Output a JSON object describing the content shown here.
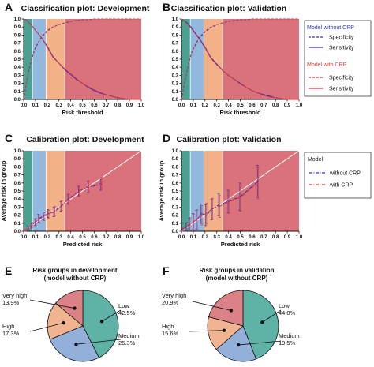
{
  "colors": {
    "very_low": "#4aa191",
    "low_zone": "#93b8dd",
    "medium_zone": "#f2b187",
    "high_zone": "#d9727a",
    "no_crp": "#2e33c4",
    "crp": "#e23a3a",
    "pie_low": "#5fb3a6",
    "pie_medium": "#93b0db",
    "pie_high": "#f1b491",
    "pie_very_high": "#dc8287"
  },
  "zones": [
    0.0,
    0.075,
    0.19,
    0.35,
    1.0
  ],
  "panels": [
    {
      "letter": "A",
      "title": "Classification plot: Development"
    },
    {
      "letter": "B",
      "title": "Classification plot: Validation"
    },
    {
      "letter": "C",
      "title": "Calibration plot: Development"
    },
    {
      "letter": "D",
      "title": "Calibration plot: Validation"
    },
    {
      "letter": "E",
      "title_line1": "Risk groups in development",
      "title_line2": "(model without CRP)"
    },
    {
      "letter": "F",
      "title_line1": "Risk groups in validation",
      "title_line2": "(model without CRP)"
    }
  ],
  "legends": {
    "classification": {
      "group1": "Model without CRP",
      "group1_items": [
        "Specificity",
        "Sensitivity"
      ],
      "group2": "Model with CRP",
      "group2_items": [
        "Specificity",
        "Sensitivity"
      ]
    },
    "calibration": {
      "title": "Model",
      "items": [
        "without CRP",
        "with CRP"
      ]
    }
  },
  "chart_data": [
    {
      "type": "line",
      "panel": "A",
      "title": "Classification plot: Development",
      "xlabel": "Risk threshold",
      "ylabel": "",
      "xlim": [
        0,
        1
      ],
      "ylim": [
        0,
        1
      ],
      "xticks": [
        "0.0",
        "0.1",
        "0.2",
        "0.3",
        "0.4",
        "0.5",
        "0.6",
        "0.7",
        "0.8",
        "0.9",
        "1.0"
      ],
      "yticks": [
        "0.0",
        "0.1",
        "0.2",
        "0.3",
        "0.4",
        "0.5",
        "0.6",
        "0.7",
        "0.8",
        "0.9",
        "1.0"
      ],
      "x": [
        0.0,
        0.02,
        0.04,
        0.06,
        0.08,
        0.1,
        0.15,
        0.2,
        0.25,
        0.3,
        0.35,
        0.4,
        0.45,
        0.5,
        0.55,
        0.6,
        0.65,
        0.7,
        0.75,
        0.8,
        0.9,
        1.0
      ],
      "series": [
        {
          "name": "Specificity",
          "group": "Model without CRP",
          "values": [
            0.0,
            0.18,
            0.33,
            0.46,
            0.56,
            0.64,
            0.77,
            0.85,
            0.9,
            0.93,
            0.95,
            0.97,
            0.98,
            0.99,
            0.99,
            1.0,
            1.0,
            1.0,
            1.0,
            1.0,
            1.0,
            1.0
          ]
        },
        {
          "name": "Sensitivity",
          "group": "Model without CRP",
          "values": [
            1.0,
            0.99,
            0.96,
            0.93,
            0.9,
            0.86,
            0.77,
            0.66,
            0.53,
            0.45,
            0.37,
            0.31,
            0.25,
            0.2,
            0.15,
            0.11,
            0.08,
            0.06,
            0.04,
            0.02,
            0.0,
            0.0
          ]
        },
        {
          "name": "Specificity",
          "group": "Model with CRP",
          "values": [
            0.0,
            0.19,
            0.34,
            0.47,
            0.57,
            0.65,
            0.78,
            0.86,
            0.9,
            0.93,
            0.95,
            0.97,
            0.98,
            0.99,
            0.99,
            1.0,
            1.0,
            1.0,
            1.0,
            1.0,
            1.0,
            1.0
          ]
        },
        {
          "name": "Sensitivity",
          "group": "Model with CRP",
          "values": [
            1.0,
            0.99,
            0.96,
            0.93,
            0.9,
            0.86,
            0.77,
            0.65,
            0.52,
            0.45,
            0.38,
            0.32,
            0.26,
            0.2,
            0.16,
            0.12,
            0.09,
            0.06,
            0.04,
            0.02,
            0.0,
            0.0
          ]
        }
      ]
    },
    {
      "type": "line",
      "panel": "B",
      "title": "Classification plot: Validation",
      "xlabel": "Risk threshold",
      "ylabel": "",
      "xlim": [
        0,
        1
      ],
      "ylim": [
        0,
        1
      ],
      "xticks": [
        "0.0",
        "0.1",
        "0.2",
        "0.3",
        "0.4",
        "0.5",
        "0.6",
        "0.7",
        "0.8",
        "0.9",
        "1.0"
      ],
      "yticks": [
        "0.0",
        "0.1",
        "0.2",
        "0.3",
        "0.4",
        "0.5",
        "0.6",
        "0.7",
        "0.8",
        "0.9",
        "1.0"
      ],
      "x": [
        0.0,
        0.02,
        0.04,
        0.06,
        0.08,
        0.1,
        0.15,
        0.2,
        0.25,
        0.3,
        0.35,
        0.4,
        0.45,
        0.5,
        0.55,
        0.6,
        0.65,
        0.7,
        0.75,
        0.8,
        0.9,
        1.0
      ],
      "series": [
        {
          "name": "Specificity",
          "group": "Model without CRP",
          "values": [
            0.0,
            0.17,
            0.31,
            0.44,
            0.55,
            0.63,
            0.76,
            0.84,
            0.89,
            0.93,
            0.95,
            0.97,
            0.98,
            0.99,
            0.99,
            1.0,
            1.0,
            1.0,
            1.0,
            1.0,
            1.0,
            1.0
          ]
        },
        {
          "name": "Sensitivity",
          "group": "Model without CRP",
          "values": [
            1.0,
            0.98,
            0.96,
            0.93,
            0.9,
            0.86,
            0.76,
            0.65,
            0.52,
            0.44,
            0.36,
            0.3,
            0.25,
            0.2,
            0.15,
            0.11,
            0.08,
            0.06,
            0.04,
            0.02,
            0.0,
            0.0
          ]
        },
        {
          "name": "Specificity",
          "group": "Model with CRP",
          "values": [
            0.0,
            0.18,
            0.32,
            0.45,
            0.56,
            0.64,
            0.77,
            0.85,
            0.9,
            0.93,
            0.95,
            0.97,
            0.98,
            0.99,
            0.99,
            1.0,
            1.0,
            1.0,
            1.0,
            1.0,
            1.0,
            1.0
          ]
        },
        {
          "name": "Sensitivity",
          "group": "Model with CRP",
          "values": [
            1.0,
            0.98,
            0.95,
            0.92,
            0.89,
            0.85,
            0.75,
            0.64,
            0.51,
            0.43,
            0.36,
            0.3,
            0.25,
            0.19,
            0.15,
            0.11,
            0.08,
            0.05,
            0.03,
            0.02,
            0.0,
            0.0
          ]
        }
      ]
    },
    {
      "type": "line",
      "panel": "C",
      "title": "Calibration plot: Development",
      "xlabel": "Predicted risk",
      "ylabel": "Average risk in group",
      "xlim": [
        0,
        1
      ],
      "ylim": [
        0,
        1
      ],
      "xticks": [
        "0.0",
        "0.1",
        "0.2",
        "0.3",
        "0.4",
        "0.5",
        "0.6",
        "0.7",
        "0.8",
        "0.9",
        "1.0"
      ],
      "yticks": [
        "0.0",
        "0.1",
        "0.2",
        "0.3",
        "0.4",
        "0.5",
        "0.6",
        "0.7",
        "0.8",
        "0.9",
        "1.0"
      ],
      "series": [
        {
          "name": "without CRP",
          "x": [
            0.01,
            0.04,
            0.07,
            0.1,
            0.13,
            0.17,
            0.21,
            0.26,
            0.32,
            0.38,
            0.47,
            0.55,
            0.66
          ],
          "values": [
            0.01,
            0.04,
            0.07,
            0.11,
            0.16,
            0.19,
            0.22,
            0.24,
            0.31,
            0.4,
            0.5,
            0.55,
            0.58
          ],
          "err": [
            0.01,
            0.02,
            0.03,
            0.04,
            0.05,
            0.05,
            0.05,
            0.06,
            0.06,
            0.06,
            0.06,
            0.07,
            0.07
          ]
        },
        {
          "name": "with CRP",
          "x": [
            0.01,
            0.04,
            0.07,
            0.1,
            0.13,
            0.17,
            0.21,
            0.26,
            0.32,
            0.38,
            0.47,
            0.55,
            0.66
          ],
          "values": [
            0.01,
            0.04,
            0.08,
            0.12,
            0.15,
            0.18,
            0.21,
            0.25,
            0.32,
            0.39,
            0.49,
            0.56,
            0.6
          ],
          "err": [
            0.01,
            0.02,
            0.03,
            0.04,
            0.05,
            0.05,
            0.05,
            0.06,
            0.06,
            0.06,
            0.06,
            0.07,
            0.07
          ]
        }
      ]
    },
    {
      "type": "line",
      "panel": "D",
      "title": "Calibration plot: Validation",
      "xlabel": "Predicted risk",
      "ylabel": "Average risk in group",
      "xlim": [
        0,
        1
      ],
      "ylim": [
        0,
        1
      ],
      "xticks": [
        "0.0",
        "0.1",
        "0.2",
        "0.3",
        "0.4",
        "0.5",
        "0.6",
        "0.7",
        "0.8",
        "0.9",
        "1.0"
      ],
      "yticks": [
        "0.0",
        "0.1",
        "0.2",
        "0.3",
        "0.4",
        "0.5",
        "0.6",
        "0.7",
        "0.8",
        "0.9",
        "1.0"
      ],
      "series": [
        {
          "name": "without CRP",
          "x": [
            0.01,
            0.04,
            0.07,
            0.1,
            0.13,
            0.17,
            0.21,
            0.26,
            0.32,
            0.4,
            0.5,
            0.65
          ],
          "values": [
            0.02,
            0.05,
            0.08,
            0.12,
            0.14,
            0.22,
            0.2,
            0.27,
            0.33,
            0.37,
            0.43,
            0.62
          ],
          "err": [
            0.02,
            0.05,
            0.08,
            0.1,
            0.12,
            0.12,
            0.13,
            0.13,
            0.14,
            0.14,
            0.17,
            0.2
          ]
        },
        {
          "name": "with CRP",
          "x": [
            0.01,
            0.04,
            0.07,
            0.1,
            0.13,
            0.17,
            0.21,
            0.26,
            0.32,
            0.4,
            0.5,
            0.65
          ],
          "values": [
            0.02,
            0.06,
            0.09,
            0.11,
            0.15,
            0.2,
            0.22,
            0.28,
            0.31,
            0.36,
            0.42,
            0.6
          ],
          "err": [
            0.02,
            0.05,
            0.08,
            0.1,
            0.12,
            0.12,
            0.13,
            0.13,
            0.14,
            0.14,
            0.17,
            0.2
          ]
        }
      ]
    },
    {
      "type": "pie",
      "panel": "E",
      "title": "Risk groups in development (model without CRP)",
      "slices": [
        {
          "name": "Low",
          "label": "42.5%",
          "value": 42.5
        },
        {
          "name": "Medium",
          "label": "26.3%",
          "value": 26.3
        },
        {
          "name": "High",
          "label": "17.3%",
          "value": 17.3
        },
        {
          "name": "Very high",
          "label": "13.9%",
          "value": 13.9
        }
      ]
    },
    {
      "type": "pie",
      "panel": "F",
      "title": "Risk groups in validation (model without CRP)",
      "slices": [
        {
          "name": "Low",
          "label": "44.0%",
          "value": 44.0
        },
        {
          "name": "Medium",
          "label": "19.5%",
          "value": 19.5
        },
        {
          "name": "High",
          "label": "15.6%",
          "value": 15.6
        },
        {
          "name": "Very high",
          "label": "20.9%",
          "value": 20.9
        }
      ]
    }
  ]
}
